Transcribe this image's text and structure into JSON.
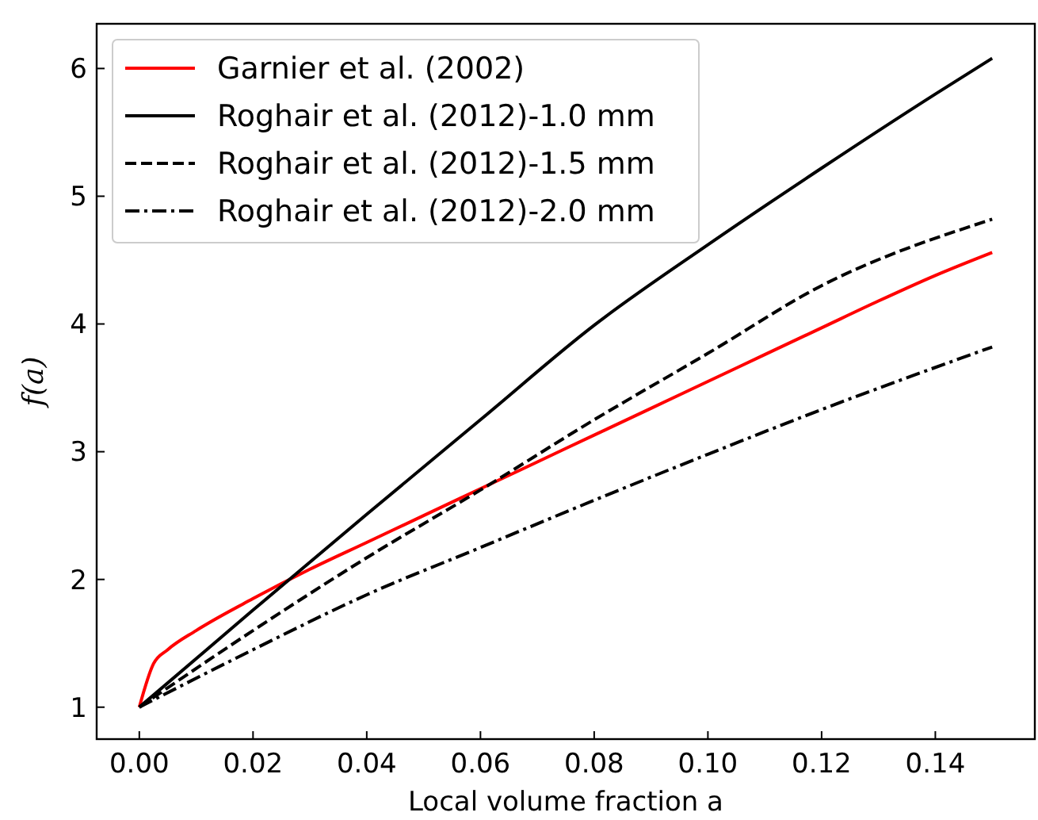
{
  "chart_data": {
    "type": "line",
    "xlabel": "Local volume fraction a",
    "ylabel": "f(a)",
    "xlim": [
      -0.0075,
      0.1575
    ],
    "ylim": [
      0.75,
      6.35
    ],
    "xticks": [
      {
        "value": 0,
        "label": "0.00"
      },
      {
        "value": 0.02,
        "label": "0.02"
      },
      {
        "value": 0.04,
        "label": "0.04"
      },
      {
        "value": 0.06,
        "label": "0.06"
      },
      {
        "value": 0.08,
        "label": "0.08"
      },
      {
        "value": 0.1,
        "label": "0.10"
      },
      {
        "value": 0.12,
        "label": "0.12"
      },
      {
        "value": 0.14,
        "label": "0.14"
      }
    ],
    "yticks": [
      1,
      2,
      3,
      4,
      5,
      6
    ],
    "grid": false,
    "legend": "top left",
    "series": [
      {
        "name": "Garnier et al. (2002)",
        "color": "#ff0000",
        "line_style": "solid",
        "x": [
          0,
          0.0025,
          0.005,
          0.01,
          0.02,
          0.03,
          0.04,
          0.05,
          0.06,
          0.07,
          0.08,
          0.09,
          0.1,
          0.11,
          0.12,
          0.13,
          0.14,
          0.15
        ],
        "values": [
          1,
          1.34,
          1.45,
          1.6,
          1.85,
          2.08,
          2.29,
          2.5,
          2.71,
          2.92,
          3.13,
          3.34,
          3.55,
          3.76,
          3.97,
          4.18,
          4.38,
          4.56
        ]
      },
      {
        "name": "Roghair et al. (2012)-1.0 mm",
        "color": "#000000",
        "line_style": "solid",
        "x": [
          0,
          0.02,
          0.04,
          0.06,
          0.08,
          0.1,
          0.12,
          0.14,
          0.15
        ],
        "values": [
          1,
          1.76,
          2.51,
          3.25,
          3.99,
          4.62,
          5.22,
          5.8,
          6.08
        ]
      },
      {
        "name": "Roghair et al. (2012)-1.5 mm",
        "color": "#000000",
        "line_style": "dashed",
        "x": [
          0,
          0.02,
          0.04,
          0.06,
          0.08,
          0.1,
          0.12,
          0.15
        ],
        "values": [
          1,
          1.6,
          2.17,
          2.7,
          3.25,
          3.77,
          4.3,
          4.82
        ]
      },
      {
        "name": "Roghair et al. (2012)-2.0 mm",
        "color": "#000000",
        "line_style": "dashdot",
        "x": [
          0,
          0.02,
          0.04,
          0.06,
          0.08,
          0.1,
          0.12,
          0.15
        ],
        "values": [
          1,
          1.45,
          1.88,
          2.25,
          2.62,
          2.98,
          3.33,
          3.82
        ]
      }
    ]
  }
}
